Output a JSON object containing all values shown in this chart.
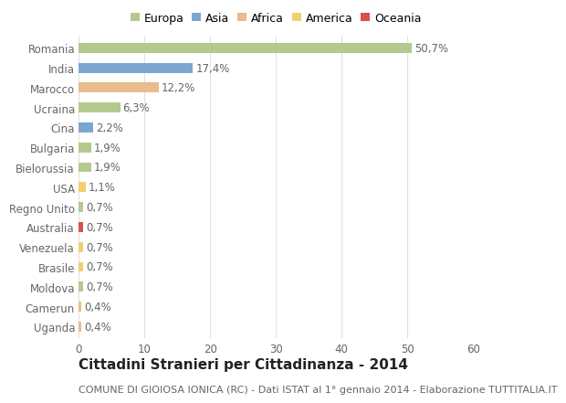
{
  "countries": [
    "Romania",
    "India",
    "Marocco",
    "Ucraina",
    "Cina",
    "Bulgaria",
    "Bielorussia",
    "USA",
    "Regno Unito",
    "Australia",
    "Venezuela",
    "Brasile",
    "Moldova",
    "Camerun",
    "Uganda"
  ],
  "values": [
    50.7,
    17.4,
    12.2,
    6.3,
    2.2,
    1.9,
    1.9,
    1.1,
    0.7,
    0.7,
    0.7,
    0.7,
    0.7,
    0.4,
    0.4
  ],
  "labels": [
    "50,7%",
    "17,4%",
    "12,2%",
    "6,3%",
    "2,2%",
    "1,9%",
    "1,9%",
    "1,1%",
    "0,7%",
    "0,7%",
    "0,7%",
    "0,7%",
    "0,7%",
    "0,4%",
    "0,4%"
  ],
  "continents": [
    "Europa",
    "Asia",
    "Africa",
    "Europa",
    "Asia",
    "Europa",
    "Europa",
    "America",
    "Europa",
    "Oceania",
    "America",
    "America",
    "Europa",
    "Africa",
    "Africa"
  ],
  "continent_colors": {
    "Europa": "#b5c98e",
    "Asia": "#7ba7cf",
    "Africa": "#e8bc8e",
    "America": "#f0d070",
    "Oceania": "#d94f4f"
  },
  "legend_order": [
    "Europa",
    "Asia",
    "Africa",
    "America",
    "Oceania"
  ],
  "title": "Cittadini Stranieri per Cittadinanza - 2014",
  "subtitle": "COMUNE DI GIOIOSA IONICA (RC) - Dati ISTAT al 1° gennaio 2014 - Elaborazione TUTTITALIA.IT",
  "xlim": [
    0,
    60
  ],
  "xticks": [
    0,
    10,
    20,
    30,
    40,
    50,
    60
  ],
  "background_color": "#ffffff",
  "grid_color": "#e0e0e0",
  "bar_height": 0.5,
  "label_fontsize": 8.5,
  "title_fontsize": 11,
  "subtitle_fontsize": 8,
  "tick_fontsize": 8.5
}
